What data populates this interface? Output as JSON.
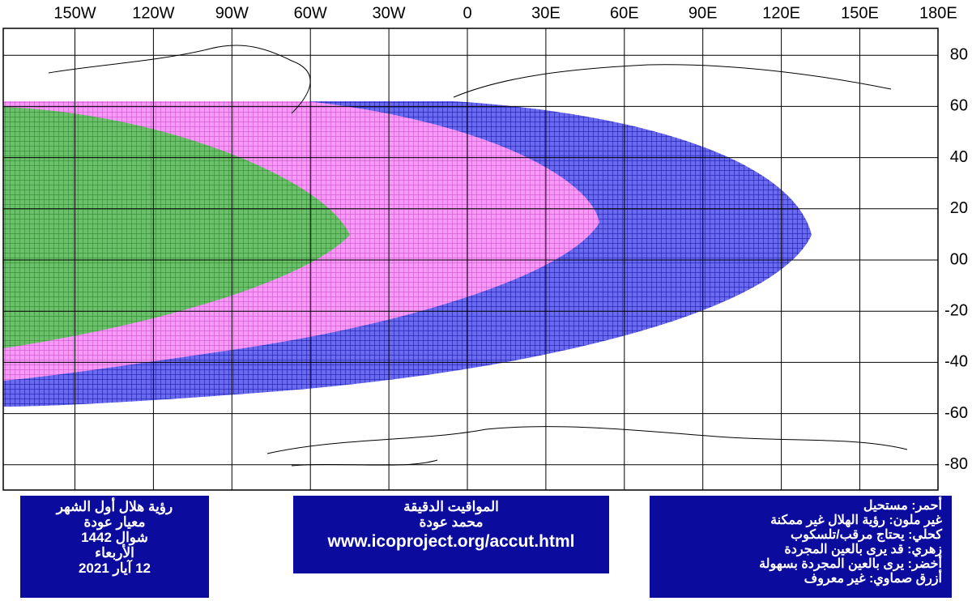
{
  "map": {
    "lon_ticks": [
      {
        "value": -150,
        "label": "150W"
      },
      {
        "value": -120,
        "label": "120W"
      },
      {
        "value": -90,
        "label": "90W"
      },
      {
        "value": -60,
        "label": "60W"
      },
      {
        "value": -30,
        "label": "30W"
      },
      0,
      {
        "value": 30,
        "label": "30E"
      },
      {
        "value": 60,
        "label": "60E"
      },
      {
        "value": 90,
        "label": "90E"
      },
      {
        "value": 120,
        "label": "120E"
      },
      {
        "value": 150,
        "label": "150E"
      },
      {
        "value": 180,
        "label": "180E"
      }
    ],
    "lat_ticks": [
      80,
      60,
      40,
      20,
      {
        "value": 0,
        "label": "00"
      },
      -20,
      -40,
      -60,
      -80
    ]
  },
  "panels": [
    {
      "lines": [
        "رؤية هلال أول الشهر",
        "معيار عودة",
        "شوال 1442",
        "الأربعاء",
        "12 آيار 2021"
      ]
    },
    {
      "lines": [
        "المواقيت الدقيقة",
        "محمد عودة",
        "www.icoproject.org/accut.html"
      ]
    },
    {
      "lines": [
        "أحمر: مستحيل",
        "غير ملون: رؤية الهلال غير ممكنة",
        "كحلي: يحتاج مرقب/تلسكوب",
        "زهري: قد يرى بالعين المجردة",
        "أخضر: يرى بالعين المجردة بسهولة",
        "أزرق صماوي: غير معروف"
      ]
    }
  ]
}
